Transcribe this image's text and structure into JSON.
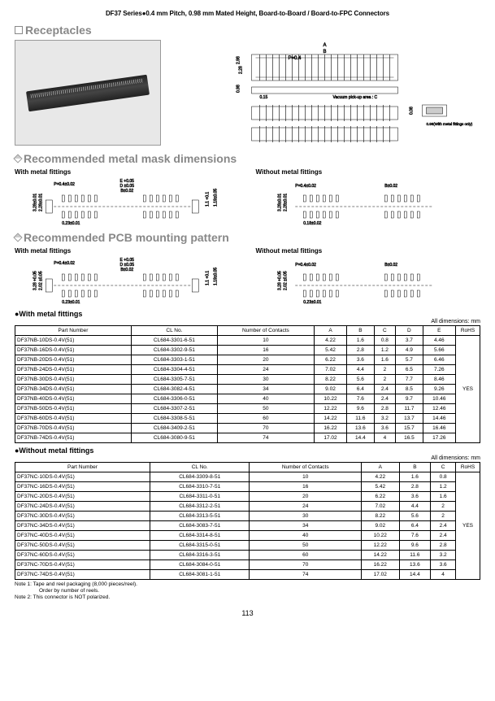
{
  "header": "DF37 Series●0.4 mm Pitch, 0.98 mm Mated Height, Board-to-Board / Board-to-FPC Connectors",
  "sec_receptacles": "Receptacles",
  "sec_mask": "Recommended metal mask dimensions",
  "sec_pcb": "Recommended PCB mounting pattern",
  "lbl_with": "With metal fittings",
  "lbl_without": "Without metal fittings",
  "bullet_with": "●With metal fittings",
  "bullet_without": "●Without metal fittings",
  "dim_note": "All dimensions: mm",
  "diag": {
    "p04": "P=0.4",
    "p0402": "P=0.4±0.02",
    "b002": "B±0.02",
    "a": "A",
    "b": "B",
    "c": "C",
    "d": "D",
    "e": "E",
    "d05": "D ±0.05",
    "e05": "E +0.05",
    "vac": "Vacuum pick-up area : C",
    "h298": "2.98",
    "h228": "2.28",
    "h098": "0.98",
    "h008": "0.08",
    "h096": "0.96(With metal fittings only)",
    "w015": "0.15",
    "w018": "0.18±0.02",
    "h328001": "3.28±0.01",
    "h228001": "2.28±0.01",
    "h328": "3.28 +0.05",
    "h202": "2.02 ±0.05",
    "w023": "0.23±0.01",
    "w11": "1.1 +0.1",
    "w119": "1.19±0.05"
  },
  "cols_with": [
    "Part Number",
    "CL No.",
    "Number of Contacts",
    "A",
    "B",
    "C",
    "D",
    "E",
    "RoHS"
  ],
  "rows_with": [
    [
      "DF37NB-10DS-0.4V(51)",
      "CL684-3301-6-51",
      "10",
      "4.22",
      "1.6",
      "0.8",
      "3.7",
      "4.46"
    ],
    [
      "DF37NB-16DS-0.4V(51)",
      "CL684-3302-9-51",
      "16",
      "5.42",
      "2.8",
      "1.2",
      "4.9",
      "5.66"
    ],
    [
      "DF37NB-20DS-0.4V(51)",
      "CL684-3303-1-51",
      "20",
      "6.22",
      "3.6",
      "1.6",
      "5.7",
      "6.46"
    ],
    [
      "DF37NB-24DS-0.4V(51)",
      "CL684-3304-4-51",
      "24",
      "7.02",
      "4.4",
      "2",
      "6.5",
      "7.26"
    ],
    [
      "DF37NB-30DS-0.4V(51)",
      "CL684-3305-7-51",
      "30",
      "8.22",
      "5.6",
      "2",
      "7.7",
      "8.46"
    ],
    [
      "DF37NB-34DS-0.4V(51)",
      "CL684-3082-4-51",
      "34",
      "9.02",
      "6.4",
      "2.4",
      "8.5",
      "9.26"
    ],
    [
      "DF37NB-40DS-0.4V(51)",
      "CL684-3306-0-51",
      "40",
      "10.22",
      "7.6",
      "2.4",
      "9.7",
      "10.46"
    ],
    [
      "DF37NB-50DS-0.4V(51)",
      "CL684-3307-2-51",
      "50",
      "12.22",
      "9.6",
      "2.8",
      "11.7",
      "12.46"
    ],
    [
      "DF37NB-60DS-0.4V(51)",
      "CL684-3308-5-51",
      "60",
      "14.22",
      "11.6",
      "3.2",
      "13.7",
      "14.46"
    ],
    [
      "DF37NB-70DS-0.4V(51)",
      "CL684-3409-2-51",
      "70",
      "16.22",
      "13.6",
      "3.6",
      "15.7",
      "16.46"
    ],
    [
      "DF37NB-74DS-0.4V(51)",
      "CL684-3080-9-51",
      "74",
      "17.02",
      "14.4",
      "4",
      "16.5",
      "17.26"
    ]
  ],
  "rohs_with": "YES",
  "cols_without": [
    "Part Number",
    "CL No.",
    "Number of Contacts",
    "A",
    "B",
    "C",
    "RoHS"
  ],
  "rows_without": [
    [
      "DF37NC-10DS-0.4V(51)",
      "CL684-3309-8-51",
      "10",
      "4.22",
      "1.6",
      "0.8"
    ],
    [
      "DF37NC-16DS-0.4V(51)",
      "CL684-3310-7-51",
      "16",
      "5.42",
      "2.8",
      "1.2"
    ],
    [
      "DF37NC-20DS-0.4V(51)",
      "CL684-3311-0-51",
      "20",
      "6.22",
      "3.6",
      "1.6"
    ],
    [
      "DF37NC-24DS-0.4V(51)",
      "CL684-3312-2-51",
      "24",
      "7.02",
      "4.4",
      "2"
    ],
    [
      "DF37NC-30DS-0.4V(51)",
      "CL684-3313-5-51",
      "30",
      "8.22",
      "5.6",
      "2"
    ],
    [
      "DF37NC-34DS-0.4V(51)",
      "CL684-3083-7-51",
      "34",
      "9.02",
      "6.4",
      "2.4"
    ],
    [
      "DF37NC-40DS-0.4V(51)",
      "CL684-3314-8-51",
      "40",
      "10.22",
      "7.6",
      "2.4"
    ],
    [
      "DF37NC-50DS-0.4V(51)",
      "CL684-3315-0-51",
      "50",
      "12.22",
      "9.6",
      "2.8"
    ],
    [
      "DF37NC-60DS-0.4V(51)",
      "CL684-3316-3-51",
      "60",
      "14.22",
      "11.6",
      "3.2"
    ],
    [
      "DF37NC-70DS-0.4V(51)",
      "CL684-3084-0-51",
      "70",
      "16.22",
      "13.6",
      "3.6"
    ],
    [
      "DF37NC-74DS-0.4V(51)",
      "CL684-3081-1-51",
      "74",
      "17.02",
      "14.4",
      "4"
    ]
  ],
  "rohs_without": "YES",
  "note1": "Note 1: Tape and reel packaging (8,000 pieces/reel).",
  "note1b": "Order by number of reels.",
  "note2": "Note 2: This connector is NOT polarized.",
  "pagenum": "113"
}
